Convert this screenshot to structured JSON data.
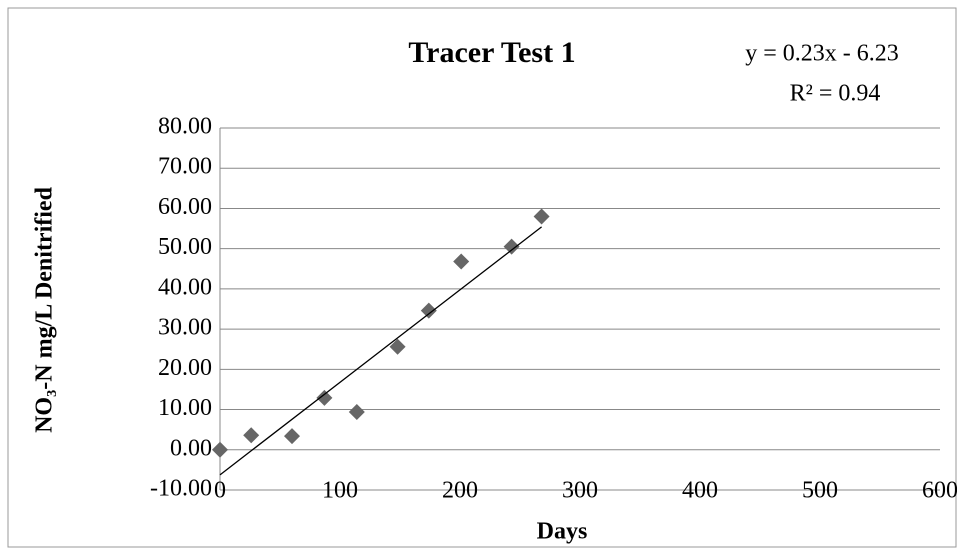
{
  "chart_data": {
    "type": "scatter",
    "title": "Tracer Test 1",
    "x": [
      0,
      26,
      60,
      87,
      114,
      148,
      174,
      201,
      243,
      268
    ],
    "values": [
      0,
      3.6,
      3.4,
      12.9,
      9.4,
      25.6,
      34.6,
      46.8,
      50.5,
      58
    ],
    "color": "#666666",
    "x_label": "Days",
    "y_label": "NO₃-N mg/L Denitrified",
    "xlim": [
      0,
      600
    ],
    "xticks": [
      0,
      100,
      200,
      300,
      400,
      500,
      600
    ],
    "ylim": [
      -10,
      80
    ],
    "yticks": [
      {
        "value": -10,
        "label": "-10.00"
      },
      {
        "value": 0,
        "label": "0.00"
      },
      {
        "value": 10,
        "label": "10.00"
      },
      {
        "value": 20,
        "label": "20.00"
      },
      {
        "value": 30,
        "label": "30.00"
      },
      {
        "value": 40,
        "label": "40.00"
      },
      {
        "value": 50,
        "label": "50.00"
      },
      {
        "value": 60,
        "label": "60.00"
      },
      {
        "value": 70,
        "label": "70.00"
      },
      {
        "value": 80,
        "label": "80.00"
      }
    ],
    "grid": true,
    "trendline": {
      "slope": 0.23,
      "intercept": -6.23,
      "label": "y = 0.23x - 6.23",
      "r2": 0.94,
      "r2_label": "R² = 0.94"
    }
  }
}
